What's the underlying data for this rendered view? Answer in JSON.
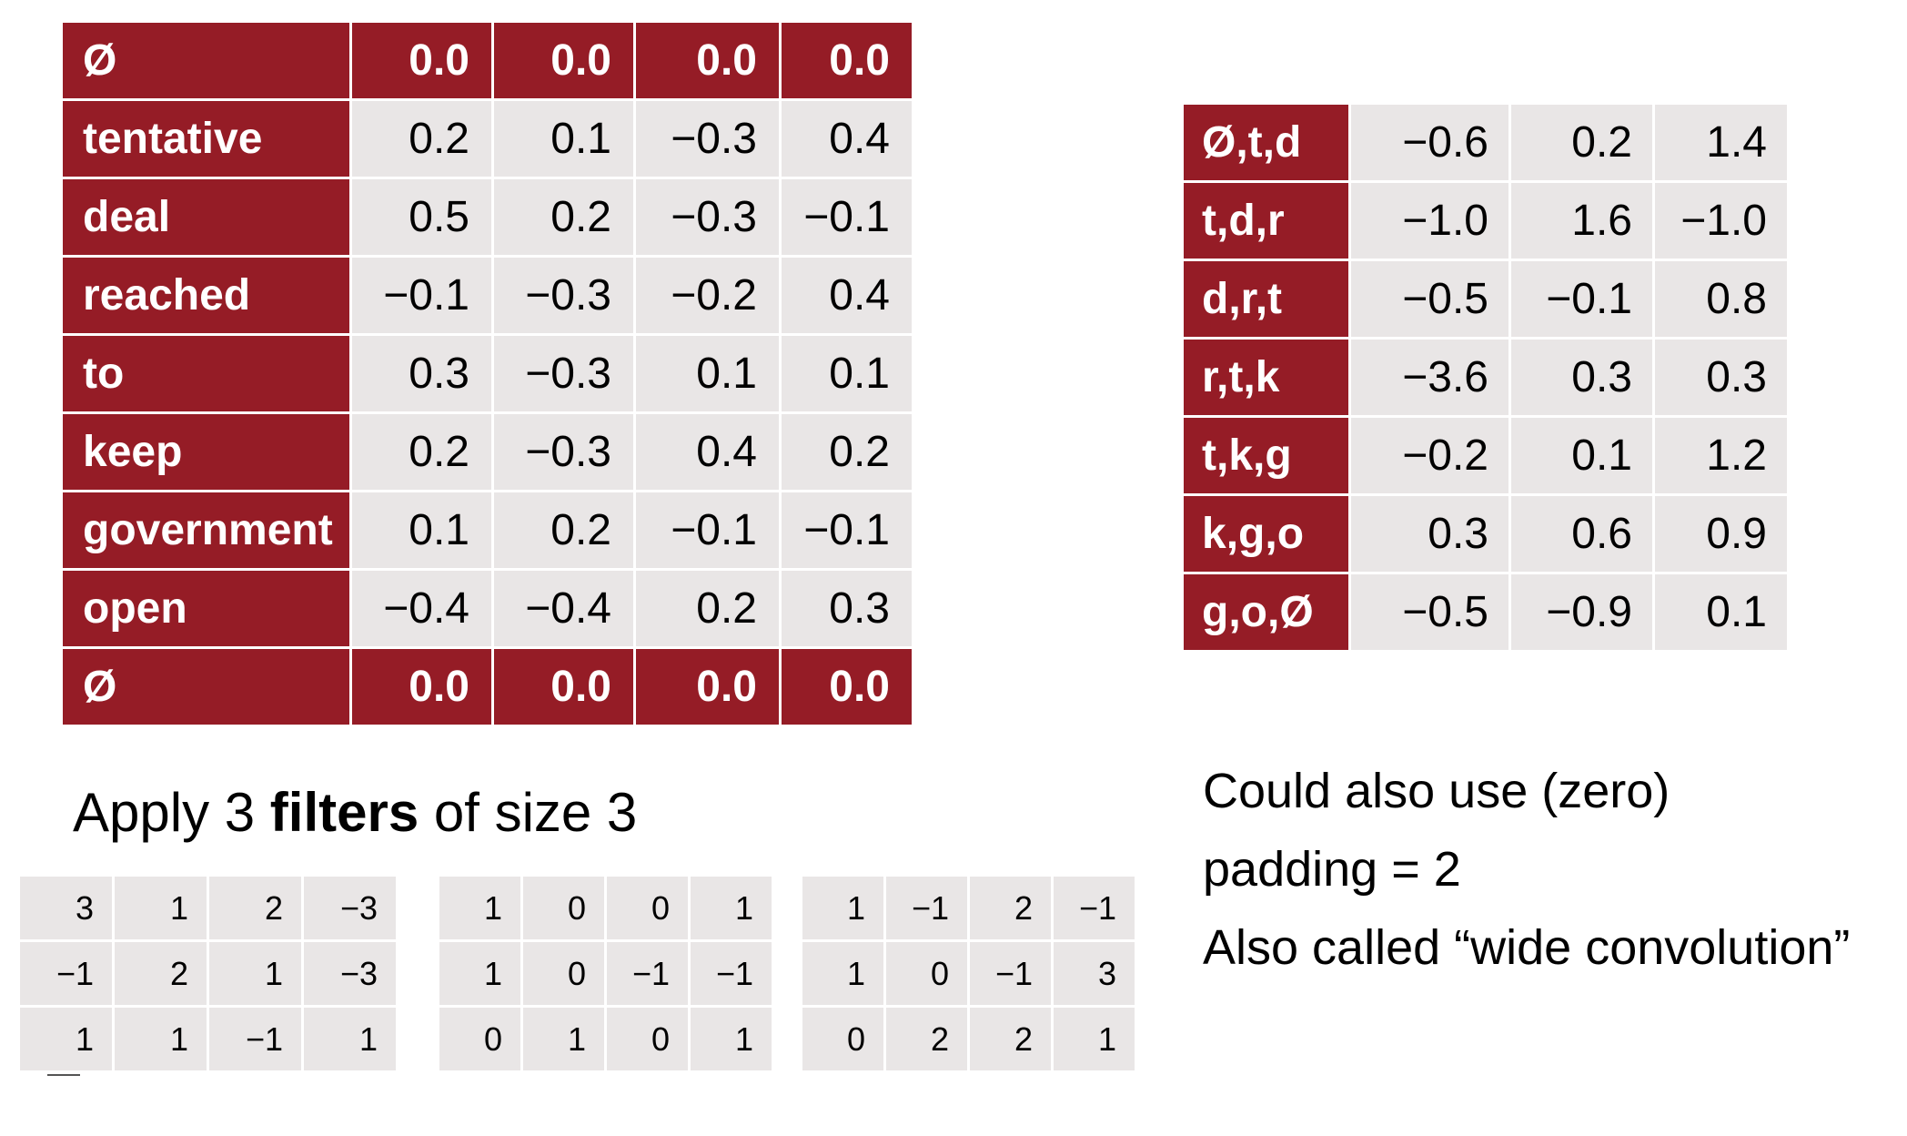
{
  "embedding_table": {
    "rows": [
      {
        "word": "Ø",
        "values": [
          "0.0",
          "0.0",
          "0.0",
          "0.0"
        ],
        "padding": true
      },
      {
        "word": "tentative",
        "values": [
          "0.2",
          "0.1",
          "−0.3",
          "0.4"
        ],
        "padding": false
      },
      {
        "word": "deal",
        "values": [
          "0.5",
          "0.2",
          "−0.3",
          "−0.1"
        ],
        "padding": false
      },
      {
        "word": "reached",
        "values": [
          "−0.1",
          "−0.3",
          "−0.2",
          "0.4"
        ],
        "padding": false
      },
      {
        "word": "to",
        "values": [
          "0.3",
          "−0.3",
          "0.1",
          "0.1"
        ],
        "padding": false
      },
      {
        "word": "keep",
        "values": [
          "0.2",
          "−0.3",
          "0.4",
          "0.2"
        ],
        "padding": false
      },
      {
        "word": "government",
        "values": [
          "0.1",
          "0.2",
          "−0.1",
          "−0.1"
        ],
        "padding": false
      },
      {
        "word": "open",
        "values": [
          "−0.4",
          "−0.4",
          "0.2",
          "0.3"
        ],
        "padding": false
      },
      {
        "word": "Ø",
        "values": [
          "0.0",
          "0.0",
          "0.0",
          "0.0"
        ],
        "padding": true
      }
    ]
  },
  "result_table": {
    "rows": [
      {
        "label": "Ø,t,d",
        "values": [
          "−0.6",
          "0.2",
          "1.4"
        ]
      },
      {
        "label": "t,d,r",
        "values": [
          "−1.0",
          "1.6",
          "−1.0"
        ]
      },
      {
        "label": "d,r,t",
        "values": [
          "−0.5",
          "−0.1",
          "0.8"
        ]
      },
      {
        "label": "r,t,k",
        "values": [
          "−3.6",
          "0.3",
          "0.3"
        ]
      },
      {
        "label": "t,k,g",
        "values": [
          "−0.2",
          "0.1",
          "1.2"
        ]
      },
      {
        "label": "k,g,o",
        "values": [
          "0.3",
          "0.6",
          "0.9"
        ]
      },
      {
        "label": "g,o,Ø",
        "values": [
          "−0.5",
          "−0.9",
          "0.1"
        ]
      }
    ]
  },
  "caption": {
    "prefix": "Apply 3 ",
    "bold": "filters",
    "suffix": " of size 3"
  },
  "filters": [
    [
      [
        "3",
        "1",
        "2",
        "−3"
      ],
      [
        "−1",
        "2",
        "1",
        "−3"
      ],
      [
        "1",
        "1",
        "−1",
        "1"
      ]
    ],
    [
      [
        "1",
        "0",
        "0",
        "1"
      ],
      [
        "1",
        "0",
        "−1",
        "−1"
      ],
      [
        "0",
        "1",
        "0",
        "1"
      ]
    ],
    [
      [
        "1",
        "−1",
        "2",
        "−1"
      ],
      [
        "1",
        "0",
        "−1",
        "3"
      ],
      [
        "0",
        "2",
        "2",
        "1"
      ]
    ]
  ],
  "note": {
    "line1": "Could also use (zero)",
    "line2": "padding = 2",
    "line3": "Also called “wide convolution”"
  },
  "colors": {
    "header_red": "#951c26",
    "cell_gray": "#e9e6e6"
  }
}
